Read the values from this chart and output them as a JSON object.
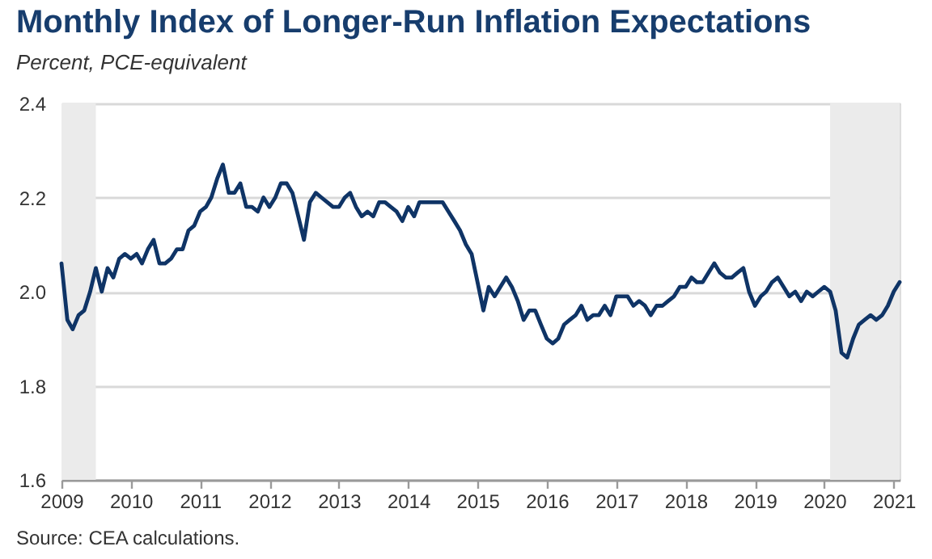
{
  "chart_data": {
    "type": "line",
    "title": "Monthly Index of Longer-Run Inflation Expectations",
    "subtitle": "Percent, PCE-equivalent",
    "annotations": [
      "Source: CEA calculations."
    ],
    "x": [
      "2009-01",
      "2009-02",
      "2009-03",
      "2009-04",
      "2009-05",
      "2009-06",
      "2009-07",
      "2009-08",
      "2009-09",
      "2009-10",
      "2009-11",
      "2009-12",
      "2010-01",
      "2010-02",
      "2010-03",
      "2010-04",
      "2010-05",
      "2010-06",
      "2010-07",
      "2010-08",
      "2010-09",
      "2010-10",
      "2010-11",
      "2010-12",
      "2011-01",
      "2011-02",
      "2011-03",
      "2011-04",
      "2011-05",
      "2011-06",
      "2011-07",
      "2011-08",
      "2011-09",
      "2011-10",
      "2011-11",
      "2011-12",
      "2012-01",
      "2012-02",
      "2012-03",
      "2012-04",
      "2012-05",
      "2012-06",
      "2012-07",
      "2012-08",
      "2012-09",
      "2012-10",
      "2012-11",
      "2012-12",
      "2013-01",
      "2013-02",
      "2013-03",
      "2013-04",
      "2013-05",
      "2013-06",
      "2013-07",
      "2013-08",
      "2013-09",
      "2013-10",
      "2013-11",
      "2013-12",
      "2014-01",
      "2014-02",
      "2014-03",
      "2014-04",
      "2014-05",
      "2014-06",
      "2014-07",
      "2014-08",
      "2014-09",
      "2014-10",
      "2014-11",
      "2014-12",
      "2015-01",
      "2015-02",
      "2015-03",
      "2015-04",
      "2015-05",
      "2015-06",
      "2015-07",
      "2015-08",
      "2015-09",
      "2015-10",
      "2015-11",
      "2015-12",
      "2016-01",
      "2016-02",
      "2016-03",
      "2016-04",
      "2016-05",
      "2016-06",
      "2016-07",
      "2016-08",
      "2016-09",
      "2016-10",
      "2016-11",
      "2016-12",
      "2017-01",
      "2017-02",
      "2017-03",
      "2017-04",
      "2017-05",
      "2017-06",
      "2017-07",
      "2017-08",
      "2017-09",
      "2017-10",
      "2017-11",
      "2017-12",
      "2018-01",
      "2018-02",
      "2018-03",
      "2018-04",
      "2018-05",
      "2018-06",
      "2018-07",
      "2018-08",
      "2018-09",
      "2018-10",
      "2018-11",
      "2018-12",
      "2019-01",
      "2019-02",
      "2019-03",
      "2019-04",
      "2019-05",
      "2019-06",
      "2019-07",
      "2019-08",
      "2019-09",
      "2019-10",
      "2019-11",
      "2019-12",
      "2020-01",
      "2020-02",
      "2020-03",
      "2020-04",
      "2020-05",
      "2020-06",
      "2020-07",
      "2020-08",
      "2020-09",
      "2020-10",
      "2020-11",
      "2020-12",
      "2021-01",
      "2021-02"
    ],
    "series": [
      {
        "color": "#0f3466",
        "values": [
          2.06,
          1.94,
          1.92,
          1.95,
          1.96,
          2.0,
          2.05,
          2.0,
          2.05,
          2.03,
          2.07,
          2.08,
          2.07,
          2.08,
          2.06,
          2.09,
          2.11,
          2.06,
          2.06,
          2.07,
          2.09,
          2.09,
          2.13,
          2.14,
          2.17,
          2.18,
          2.2,
          2.24,
          2.27,
          2.21,
          2.21,
          2.23,
          2.18,
          2.18,
          2.17,
          2.2,
          2.18,
          2.2,
          2.23,
          2.23,
          2.21,
          2.16,
          2.11,
          2.19,
          2.21,
          2.2,
          2.19,
          2.18,
          2.18,
          2.2,
          2.21,
          2.18,
          2.16,
          2.17,
          2.16,
          2.19,
          2.19,
          2.18,
          2.17,
          2.15,
          2.18,
          2.16,
          2.19,
          2.19,
          2.19,
          2.19,
          2.19,
          2.17,
          2.15,
          2.13,
          2.1,
          2.08,
          2.02,
          1.96,
          2.01,
          1.99,
          2.01,
          2.03,
          2.01,
          1.98,
          1.94,
          1.96,
          1.96,
          1.93,
          1.9,
          1.89,
          1.9,
          1.93,
          1.94,
          1.95,
          1.97,
          1.94,
          1.95,
          1.95,
          1.97,
          1.95,
          1.99,
          1.99,
          1.99,
          1.97,
          1.98,
          1.97,
          1.95,
          1.97,
          1.97,
          1.98,
          1.99,
          2.01,
          2.01,
          2.03,
          2.02,
          2.02,
          2.04,
          2.06,
          2.04,
          2.03,
          2.03,
          2.04,
          2.05,
          2.0,
          1.97,
          1.99,
          2.0,
          2.02,
          2.03,
          2.01,
          1.99,
          2.0,
          1.98,
          2.0,
          1.99,
          2.0,
          2.01,
          2.0,
          1.96,
          1.87,
          1.86,
          1.9,
          1.93,
          1.94,
          1.95,
          1.94,
          1.95,
          1.97,
          2.0,
          2.02
        ]
      }
    ],
    "xlim": [
      "2009-01",
      "2021-02"
    ],
    "xticks": [
      "2009",
      "2010",
      "2011",
      "2012",
      "2013",
      "2014",
      "2015",
      "2016",
      "2017",
      "2018",
      "2019",
      "2020",
      "2021"
    ],
    "ylim": [
      1.6,
      2.4
    ],
    "yticks": [
      1.6,
      1.8,
      {
        "value": 2.0,
        "label": "2.0"
      },
      2.2,
      2.4
    ],
    "grid": "y",
    "line_style": "solid",
    "bands": [
      {
        "axis": "x",
        "from": "2009-01",
        "to": "2009-07",
        "color": "#ebebeb"
      },
      {
        "axis": "x",
        "from": "2020-02",
        "to": "2021-02",
        "color": "#ebebeb"
      }
    ]
  }
}
